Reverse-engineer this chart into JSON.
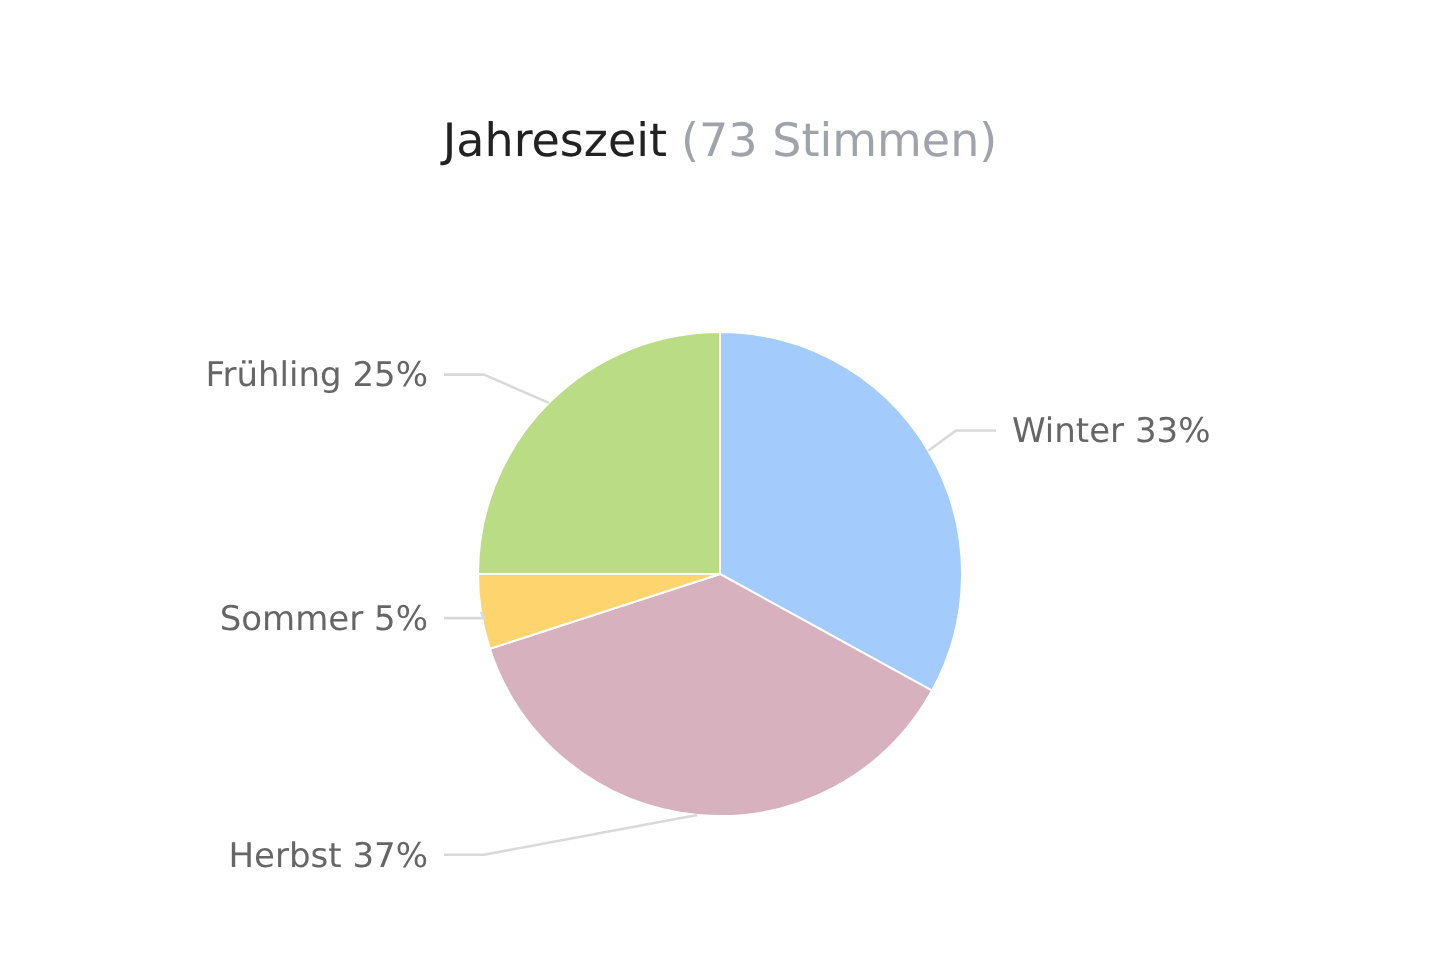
{
  "chart_data": {
    "type": "pie",
    "title": "Jahreszeit",
    "subtitle": "(73 Stimmen)",
    "categories": [
      "Winter",
      "Herbst",
      "Sommer",
      "Frühling"
    ],
    "values": [
      33,
      37,
      5,
      25
    ],
    "colors": [
      "#a3cbfb",
      "#d8b1be",
      "#fdd46e",
      "#b9dc85"
    ],
    "value_labels": [
      "33%",
      "37%",
      "5%",
      "25%"
    ]
  }
}
